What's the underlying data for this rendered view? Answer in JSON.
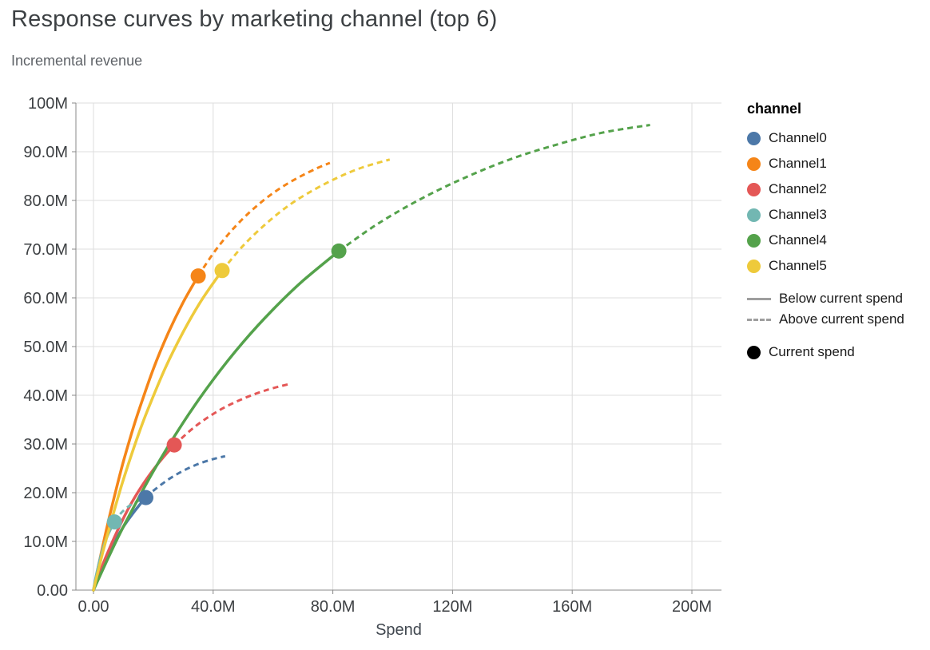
{
  "title": "Response curves by marketing channel (top 6)",
  "subtitle": "Incremental revenue",
  "chart_data": {
    "type": "line",
    "title": "Response curves by marketing channel (top 6)",
    "subtitle": "Incremental revenue",
    "xlabel": "Spend",
    "ylabel": "Incremental revenue",
    "units": "millions",
    "xlim": [
      0,
      200
    ],
    "ylim": [
      0,
      100
    ],
    "grid": true,
    "x_ticks": [
      {
        "value": 0,
        "label": "0.00"
      },
      {
        "value": 40,
        "label": "40.0M"
      },
      {
        "value": 80,
        "label": "80.0M"
      },
      {
        "value": 120,
        "label": "120M"
      },
      {
        "value": 160,
        "label": "160M"
      },
      {
        "value": 200,
        "label": "200M"
      }
    ],
    "y_ticks": [
      {
        "value": 0,
        "label": "0.00"
      },
      {
        "value": 10,
        "label": "10.0M"
      },
      {
        "value": 20,
        "label": "20.0M"
      },
      {
        "value": 30,
        "label": "30.0M"
      },
      {
        "value": 40,
        "label": "40.0M"
      },
      {
        "value": 50,
        "label": "50.0M"
      },
      {
        "value": 60,
        "label": "60.0M"
      },
      {
        "value": 70,
        "label": "70.0M"
      },
      {
        "value": 80,
        "label": "80.0M"
      },
      {
        "value": 90,
        "label": "90.0M"
      },
      {
        "value": 100,
        "label": "100M"
      }
    ],
    "legend": {
      "title": "channel",
      "below_label": "Below current spend",
      "above_label": "Above current spend",
      "current_label": "Current spend",
      "position": "right"
    },
    "line_styles": {
      "solid": "Below current spend",
      "dashed": "Above current spend"
    },
    "series": [
      {
        "name": "Channel0",
        "color": "#4c78a8",
        "current_spend": {
          "x": 17.5,
          "y": 19
        },
        "points": [
          [
            0,
            0
          ],
          [
            2.5,
            4
          ],
          [
            5,
            7.4
          ],
          [
            7.5,
            10.4
          ],
          [
            10,
            13
          ],
          [
            12.5,
            15.2
          ],
          [
            15,
            17.2
          ],
          [
            17.5,
            19
          ],
          [
            20,
            20.4
          ],
          [
            25,
            22.7
          ],
          [
            30,
            24.5
          ],
          [
            35,
            25.9
          ],
          [
            40,
            26.9
          ],
          [
            44,
            27.5
          ]
        ]
      },
      {
        "name": "Channel1",
        "color": "#f58518",
        "current_spend": {
          "x": 35,
          "y": 64.5
        },
        "points": [
          [
            0,
            0
          ],
          [
            2.5,
            7.4
          ],
          [
            5,
            14.2
          ],
          [
            7.5,
            20.5
          ],
          [
            10,
            26.4
          ],
          [
            12.5,
            31.7
          ],
          [
            15,
            36.6
          ],
          [
            20,
            45.4
          ],
          [
            25,
            52.8
          ],
          [
            30,
            59.1
          ],
          [
            35,
            64.5
          ],
          [
            40,
            69.1
          ],
          [
            45,
            73
          ],
          [
            50,
            76.3
          ],
          [
            55,
            79.1
          ],
          [
            60,
            81.5
          ],
          [
            65,
            83.5
          ],
          [
            70,
            85.2
          ],
          [
            75,
            86.7
          ],
          [
            79,
            87.7
          ]
        ]
      },
      {
        "name": "Channel2",
        "color": "#e45756",
        "current_spend": {
          "x": 27,
          "y": 29.8
        },
        "points": [
          [
            0,
            0
          ],
          [
            2,
            3.4
          ],
          [
            4,
            6.6
          ],
          [
            8,
            12.2
          ],
          [
            12,
            17.1
          ],
          [
            16,
            21.2
          ],
          [
            20,
            24.7
          ],
          [
            23.5,
            27.4
          ],
          [
            27,
            29.8
          ],
          [
            34,
            33.6
          ],
          [
            42,
            36.9
          ],
          [
            50,
            39.3
          ],
          [
            58,
            41.1
          ],
          [
            66,
            42.4
          ]
        ]
      },
      {
        "name": "Channel3",
        "color": "#72b7b2",
        "current_spend": {
          "x": 7,
          "y": 14
        },
        "points": [
          [
            0,
            0
          ],
          [
            0.5,
            1.7
          ],
          [
            1,
            3.2
          ],
          [
            2,
            5.9
          ],
          [
            3,
            8.2
          ],
          [
            4,
            10.1
          ],
          [
            5,
            11.6
          ],
          [
            6,
            12.9
          ],
          [
            7,
            14
          ],
          [
            8.5,
            15.3
          ],
          [
            10,
            16.3
          ],
          [
            12,
            17.3
          ],
          [
            14,
            18
          ],
          [
            15.5,
            18.4
          ]
        ]
      },
      {
        "name": "Channel4",
        "color": "#54a24b",
        "current_spend": {
          "x": 82,
          "y": 69.6
        },
        "points": [
          [
            0,
            0
          ],
          [
            5,
            6.7
          ],
          [
            10,
            13
          ],
          [
            20,
            24.4
          ],
          [
            30,
            34.4
          ],
          [
            40,
            43.2
          ],
          [
            50,
            50.9
          ],
          [
            60,
            57.6
          ],
          [
            70,
            63.5
          ],
          [
            82,
            69.6
          ],
          [
            95,
            75.2
          ],
          [
            110,
            80.5
          ],
          [
            125,
            84.9
          ],
          [
            140,
            88.6
          ],
          [
            155,
            91.5
          ],
          [
            170,
            93.9
          ],
          [
            186,
            95.5
          ]
        ]
      },
      {
        "name": "Channel5",
        "color": "#eeca3b",
        "current_spend": {
          "x": 43,
          "y": 65.6
        },
        "points": [
          [
            0,
            0
          ],
          [
            3,
            7.5
          ],
          [
            6,
            14.3
          ],
          [
            9,
            20.7
          ],
          [
            12,
            26.5
          ],
          [
            15,
            31.9
          ],
          [
            18,
            36.8
          ],
          [
            24,
            45.6
          ],
          [
            30,
            53
          ],
          [
            36,
            59.4
          ],
          [
            43,
            65.6
          ],
          [
            50,
            70.7
          ],
          [
            58,
            75.4
          ],
          [
            66,
            79.3
          ],
          [
            74,
            82.3
          ],
          [
            82,
            84.8
          ],
          [
            90,
            86.8
          ],
          [
            99,
            88.4
          ]
        ]
      }
    ]
  }
}
